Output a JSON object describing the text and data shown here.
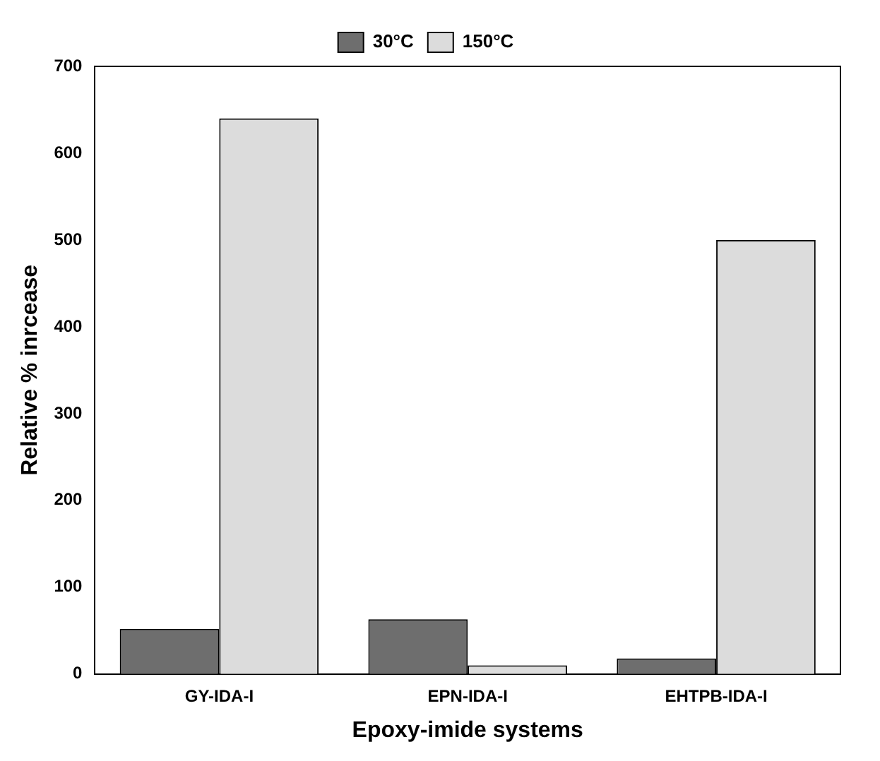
{
  "chart_data": {
    "type": "bar",
    "xlabel": "Epoxy-imide systems",
    "ylabel": "Relative % inrcease",
    "categories": [
      "GY-IDA-I",
      "EPN-IDA-I",
      "EHTPB-IDA-I"
    ],
    "series": [
      {
        "name": "30°C",
        "color": "#6e6e6e",
        "values": [
          52,
          63,
          18
        ]
      },
      {
        "name": "150°C",
        "color": "#dcdcdc",
        "values": [
          640,
          10,
          500
        ]
      }
    ],
    "ylim": [
      0,
      700
    ],
    "yticks": [
      0,
      100,
      200,
      300,
      400,
      500,
      600,
      700
    ],
    "grid": false,
    "legend": "top"
  }
}
